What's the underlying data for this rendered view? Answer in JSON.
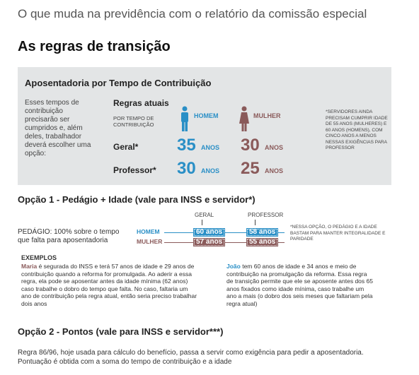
{
  "header": {
    "kicker": "O que muda na previdência com o relatório da comissão especial",
    "title": "As regras de transição"
  },
  "box": {
    "title": "Aposentadoria por Tempo de Contribuição",
    "intro": "Esses tempos de contribuição precisarão ser cumpridos e, além deles, trabalhador deverá escolher uma opção:",
    "rules_title": "Regras atuais",
    "by_time": "POR TEMPO DE CONTRIBUIÇÃO",
    "men": "HOMEM",
    "women": "MULHER",
    "unit": "ANOS",
    "rows": [
      {
        "label": "Geral*",
        "men": "35",
        "women": "30"
      },
      {
        "label": "Professor*",
        "men": "30",
        "women": "25"
      }
    ],
    "note": "*SERVIDORES AINDA PRECISAM CUMPRIR IDADE DE 55 ANOS (MULHERES) E 60 ANOS (HOMENS), COM CINCO ANOS A MENOS NESSAS EXIGÊNCIAS PARA PROFESSOR"
  },
  "option1": {
    "title": "Opção 1 - Pedágio + Idade (vale para INSS e servidor*)",
    "text": "PEDÁGIO: 100% sobre o tempo que falta para aposentadoria",
    "columns": [
      "GERAL",
      "PROFESSOR"
    ],
    "rows": [
      {
        "label": "HOMEM",
        "values": [
          "60 anos",
          "58 anos"
        ]
      },
      {
        "label": "MULHER",
        "values": [
          "57 anos",
          "55 anos"
        ]
      }
    ],
    "note": "*NESSA OPÇÃO, O PEDÁGIO E A IDADE BASTAM PARA MANTER INTEGRALIDADE E PARIDADE",
    "examples_title": "EXEMPLOS",
    "examples": [
      {
        "name": "Maria",
        "text": " é segurada do INSS e terá 57 anos de idade e 29 anos de contribuição quando a reforma for promulgada. Ao aderir a essa regra, ela pode se aposentar antes da idade mínima (62 anos) caso trabalhe o dobro do tempo que falta. No caso, faltaria um ano de contribuição pela regra atual, então seria preciso trabalhar dois anos"
      },
      {
        "name": "João",
        "text": " tem 60 anos de idade e 34 anos e meio de contribuição na promulgação da reforma. Essa regra de transição permite que ele se aposente antes dos 65 anos fixados como idade mínima, caso trabalhe um ano a mais (o dobro dos seis meses que faltariam pela regra atual)"
      }
    ]
  },
  "option2": {
    "title": "Opção 2 - Pontos (vale para INSS e servidor***)",
    "text": "Regra 86/96, hoje usada para cálculo do benefício, passa a servir como exigência para pedir a aposentadoria. Pontuação é obtida com a soma do tempo de contribuição e a idade"
  }
}
